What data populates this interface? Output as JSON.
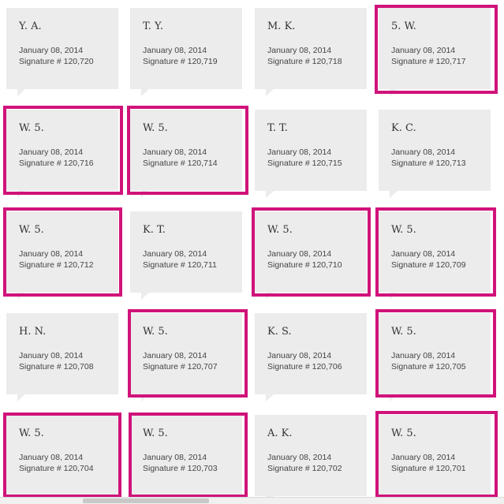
{
  "colors": {
    "card_bg": "#ececec",
    "highlight": "#d0137a"
  },
  "cards": [
    {
      "initials": "Y. A.",
      "date": "January 08, 2014",
      "signature": "Signature # 120,720",
      "highlighted": false
    },
    {
      "initials": "T. Y.",
      "date": "January 08, 2014",
      "signature": "Signature # 120,719",
      "highlighted": false
    },
    {
      "initials": "M. K.",
      "date": "January 08, 2014",
      "signature": "Signature # 120,718",
      "highlighted": false
    },
    {
      "initials": "5. W.",
      "date": "January 08, 2014",
      "signature": "Signature # 120,717",
      "highlighted": true
    },
    {
      "initials": "W. 5.",
      "date": "January 08, 2014",
      "signature": "Signature # 120,716",
      "highlighted": true
    },
    {
      "initials": "W. 5.",
      "date": "January 08, 2014",
      "signature": "Signature # 120,714",
      "highlighted": true
    },
    {
      "initials": "T. T.",
      "date": "January 08, 2014",
      "signature": "Signature # 120,715",
      "highlighted": false
    },
    {
      "initials": "K. C.",
      "date": "January 08, 2014",
      "signature": "Signature # 120,713",
      "highlighted": false
    },
    {
      "initials": "W. 5.",
      "date": "January 08, 2014",
      "signature": "Signature # 120,712",
      "highlighted": true
    },
    {
      "initials": "K. T.",
      "date": "January 08, 2014",
      "signature": "Signature # 120,711",
      "highlighted": false
    },
    {
      "initials": "W. 5.",
      "date": "January 08, 2014",
      "signature": "Signature # 120,710",
      "highlighted": true
    },
    {
      "initials": "W. 5.",
      "date": "January 08, 2014",
      "signature": "Signature # 120,709",
      "highlighted": true
    },
    {
      "initials": "H. N.",
      "date": "January 08, 2014",
      "signature": "Signature # 120,708",
      "highlighted": false
    },
    {
      "initials": "W. 5.",
      "date": "January 08, 2014",
      "signature": "Signature # 120,707",
      "highlighted": true
    },
    {
      "initials": "K. S.",
      "date": "January 08, 2014",
      "signature": "Signature # 120,706",
      "highlighted": false
    },
    {
      "initials": "W. 5.",
      "date": "January 08, 2014",
      "signature": "Signature # 120,705",
      "highlighted": true
    },
    {
      "initials": "W. 5.",
      "date": "January 08, 2014",
      "signature": "Signature # 120,704",
      "highlighted": true
    },
    {
      "initials": "W. 5.",
      "date": "January 08, 2014",
      "signature": "Signature # 120,703",
      "highlighted": true
    },
    {
      "initials": "A. K.",
      "date": "January 08, 2014",
      "signature": "Signature # 120,702",
      "highlighted": false
    },
    {
      "initials": "W. 5.",
      "date": "January 08, 2014",
      "signature": "Signature # 120,701",
      "highlighted": true
    }
  ]
}
